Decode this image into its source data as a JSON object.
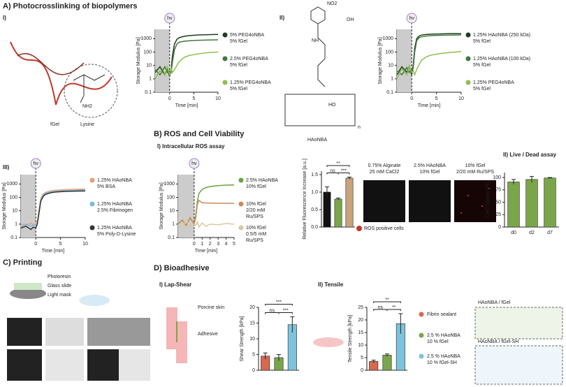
{
  "panels": {
    "a": "A) Photocrosslinking of biopolymers",
    "a1": "I)",
    "a2": "II)",
    "a3": "III)",
    "b": "B) ROS and Cell Viability",
    "b1": "I) Intracellular ROS assay",
    "b2": "II) Live / Dead assay",
    "c": "C) Printing",
    "d": "D) Bioadhesive",
    "d1": "I) Lap-Shear",
    "d2": "II) Tensile"
  },
  "labels": {
    "fgel": "fGel",
    "lysine": "Lysine",
    "nh2": "NH2",
    "haonba": "HAoNBA",
    "no2": "NO2",
    "oh": "OH",
    "nh": "NH",
    "ho": "HO",
    "n": "n",
    "mic1": [
      "0.75% Alginate",
      "25 mM CaCl2"
    ],
    "mic2": [
      "2.5% HAoNBA",
      "10% fGel"
    ],
    "mic3": [
      "10% fGel",
      "2/20 mM Ru/SPS"
    ],
    "ros": "ROS positive cells",
    "photoresin": "Photoresin",
    "glass": "Glass slide",
    "mask": "Light mask",
    "skin": "Porcine skin",
    "adhesive": "Adhesive",
    "sch1": "HAoNBA / fGel",
    "sch2": "HAoNBA / fGel-SH"
  },
  "chart_data": [
    {
      "type": "line",
      "log_y": true,
      "light_label": "hν",
      "xlabel": "Time [min]",
      "ylabel": "Storage Modulus [Pa]",
      "xlim": [
        -3,
        10
      ],
      "xticks": [
        0,
        5,
        10
      ],
      "ylim": [
        0.1,
        5000
      ],
      "yticks": [
        0.1,
        1,
        10,
        100,
        1000
      ],
      "x": [
        -3,
        -2,
        -1,
        -0.5,
        0,
        0.3,
        0.6,
        1,
        1.5,
        2,
        3,
        4,
        6,
        8,
        10
      ],
      "series": [
        {
          "name": [
            "5% PEG4oNBA",
            "5% fGel"
          ],
          "color": "#1e3d1e",
          "values": [
            3,
            8,
            2,
            6,
            1.5,
            5,
            60,
            400,
            900,
            1200,
            1500,
            1700,
            1900,
            2000,
            2100
          ]
        },
        {
          "name": [
            "2.5% PEG4oNBA",
            "5% fGel"
          ],
          "color": "#3f7a3a",
          "values": [
            5,
            2,
            8,
            3,
            4,
            3,
            20,
            150,
            400,
            550,
            650,
            700,
            760,
            800,
            820
          ]
        },
        {
          "name": [
            "1.25% PEG4oNBA",
            "5% fGel"
          ],
          "color": "#8fbf4f",
          "values": [
            1,
            4,
            2,
            8,
            2,
            6,
            3,
            5,
            10,
            20,
            40,
            55,
            75,
            90,
            100
          ]
        }
      ]
    },
    {
      "type": "line",
      "log_y": true,
      "light_label": "hν",
      "xlabel": "Time [min]",
      "ylabel": "Storage Modulus [Pa]",
      "xlim": [
        -3,
        10
      ],
      "xticks": [
        0,
        5,
        10
      ],
      "ylim": [
        0.1,
        5000
      ],
      "yticks": [
        0.1,
        1,
        10,
        100,
        1000
      ],
      "x": [
        -3,
        -2,
        -1,
        -0.5,
        0,
        0.3,
        0.6,
        1,
        1.5,
        2,
        3,
        4,
        6,
        8,
        10
      ],
      "series": [
        {
          "name": [
            "1.25% HAoNBA (250 kDa)",
            "5% fGel"
          ],
          "color": "#1e3d1e",
          "values": [
            2,
            8,
            3,
            9,
            2,
            10,
            200,
            1000,
            1600,
            1900,
            2100,
            2200,
            2300,
            2400,
            2400
          ]
        },
        {
          "name": [
            "1.25% HAoNBA (100 kDa)",
            "5% fGel"
          ],
          "color": "#3f7a3a",
          "values": [
            4,
            2,
            7,
            3,
            5,
            6,
            100,
            700,
            1200,
            1400,
            1600,
            1700,
            1800,
            1850,
            1900
          ]
        },
        {
          "name": [
            "1.25% PEG4oNBA",
            "5% fGel"
          ],
          "color": "#8fbf4f",
          "values": [
            1,
            6,
            2,
            9,
            3,
            4,
            2,
            5,
            12,
            25,
            45,
            60,
            80,
            95,
            110
          ]
        }
      ]
    },
    {
      "type": "line",
      "log_y": true,
      "light_label": "hν",
      "xlabel": "Time [min]",
      "ylabel": "Storage Modulus [Pa]",
      "xlim": [
        -3,
        10
      ],
      "xticks": [
        0,
        5,
        10
      ],
      "ylim": [
        0.1,
        5000
      ],
      "yticks": [
        0.1,
        1,
        10,
        100,
        1000
      ],
      "x": [
        -3,
        -2,
        -1,
        -0.5,
        0,
        0.3,
        0.6,
        1,
        1.5,
        2,
        3,
        4,
        6,
        8,
        10
      ],
      "series": [
        {
          "name": [
            "1.25% HAoNBA",
            "5% BSA"
          ],
          "color": "#e4a07a",
          "values": [
            1,
            0.8,
            1.2,
            0.9,
            1,
            1.5,
            10,
            80,
            180,
            240,
            300,
            340,
            380,
            400,
            420
          ]
        },
        {
          "name": [
            "1.25% HAoNBA",
            "2.5% Fibrinogen"
          ],
          "color": "#7fb8d6",
          "values": [
            0.6,
            1,
            0.7,
            0.9,
            0.8,
            1.2,
            6,
            60,
            150,
            200,
            260,
            290,
            320,
            340,
            350
          ]
        },
        {
          "name": [
            "1.25% HAoNBA",
            "5% Poly-D-Lysine"
          ],
          "color": "#333333",
          "values": [
            0.5,
            0.7,
            0.4,
            0.6,
            0.5,
            1,
            5,
            50,
            120,
            170,
            220,
            250,
            280,
            290,
            300
          ]
        }
      ]
    },
    {
      "type": "line",
      "log_y": true,
      "light_label": "hν",
      "xlabel": "Time [min]",
      "ylabel": "Storage Modulus [Pa]",
      "xlim": [
        -2,
        5
      ],
      "xticks": [
        0,
        1,
        2,
        3,
        4,
        5
      ],
      "ylim": [
        0.1,
        5000
      ],
      "yticks": [
        0.1,
        1,
        10,
        100,
        1000
      ],
      "x": [
        -2,
        -1.5,
        -1,
        -0.5,
        0,
        0.2,
        0.4,
        0.6,
        1,
        1.5,
        2,
        3,
        4,
        5
      ],
      "series": [
        {
          "name": [
            "2.5% HAoNBA",
            "10% fGel"
          ],
          "color": "#6da33e",
          "values": [
            1,
            2,
            0.8,
            3,
            1,
            5,
            50,
            200,
            400,
            550,
            650,
            750,
            820,
            850
          ]
        },
        {
          "name": [
            "10% fGel",
            "2/20 mM",
            "Ru/SPS"
          ],
          "color": "#c98a5a",
          "values": [
            1,
            2,
            0.8,
            3,
            1,
            3,
            30,
            60,
            40,
            38,
            37,
            36,
            36,
            35
          ]
        },
        {
          "name": [
            "10% fGel",
            "0.5/5 mM",
            "Ru/SPS"
          ],
          "color": "#d8c9a0",
          "values": [
            1,
            0.5,
            2,
            0.6,
            1,
            0.8,
            1.5,
            0.6,
            1.2,
            0.7,
            1,
            0.9,
            1.1,
            1
          ]
        }
      ]
    },
    {
      "type": "bar",
      "ylabel": "Relative Fluorescence Increase [a.u.]",
      "categories": [
        null,
        null,
        null
      ],
      "values": [
        1.0,
        0.8,
        1.4
      ],
      "errors": [
        0.15,
        0.03,
        0.03
      ],
      "colors": [
        "#111111",
        "#7aa64a",
        "#c9a37a"
      ],
      "ylim": [
        0,
        1.6
      ],
      "yticks": [
        {
          "value": 0,
          "label": "0.0"
        },
        0.5,
        {
          "value": 1,
          "label": "1.0"
        },
        1.5
      ],
      "significance": [
        "**",
        "ns",
        "***"
      ]
    },
    {
      "type": "bar",
      "ylabel": "Cell Viability [%]",
      "categories": [
        "d0",
        "d2",
        "d7"
      ],
      "values": [
        91,
        96,
        99
      ],
      "errors": [
        5,
        6,
        1
      ],
      "colors": [
        "#7aa64a",
        "#7aa64a",
        "#7aa64a"
      ],
      "ylim": [
        0,
        110
      ],
      "yticks": [
        0,
        25,
        50,
        75,
        100
      ]
    },
    {
      "type": "bar",
      "ylabel": "Shear Strength [kPa]",
      "categories": [
        null,
        null,
        null
      ],
      "values": [
        4.5,
        4,
        14.5
      ],
      "errors": [
        1,
        1,
        2.5
      ],
      "colors": [
        "#d9684c",
        "#7aa64a",
        "#7ec3de"
      ],
      "ylim": [
        0,
        20
      ],
      "yticks": [
        0,
        5,
        10,
        15,
        20
      ],
      "significance": [
        "***",
        "ns",
        "***"
      ]
    },
    {
      "type": "bar",
      "ylabel": "Tensile Strength [kPa]",
      "categories": [
        null,
        null,
        null
      ],
      "values": [
        3.5,
        6,
        18.5
      ],
      "errors": [
        0.5,
        0.5,
        4
      ],
      "colors": [
        "#d9684c",
        "#7aa64a",
        "#7ec3de"
      ],
      "ylim": [
        0,
        25
      ],
      "yticks": [
        0,
        5,
        10,
        15,
        20,
        25
      ],
      "significance": [
        "**",
        "ns",
        "**"
      ],
      "legend": [
        [
          "Fibrin sealant"
        ],
        [
          "2.5 % HAoNBA",
          "10 % fGel"
        ],
        [
          "2.5 % HAoNBA",
          "10 % fGel-SH"
        ]
      ]
    }
  ]
}
